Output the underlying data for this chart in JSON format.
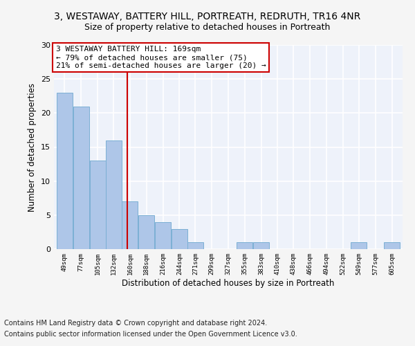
{
  "title1": "3, WESTAWAY, BATTERY HILL, PORTREATH, REDRUTH, TR16 4NR",
  "title2": "Size of property relative to detached houses in Portreath",
  "xlabel": "Distribution of detached houses by size in Portreath",
  "ylabel": "Number of detached properties",
  "bins": [
    49,
    77,
    105,
    132,
    160,
    188,
    216,
    244,
    271,
    299,
    327,
    355,
    383,
    410,
    438,
    466,
    494,
    522,
    549,
    577,
    605
  ],
  "counts": [
    23,
    21,
    13,
    16,
    7,
    5,
    4,
    3,
    1,
    0,
    0,
    1,
    1,
    0,
    0,
    0,
    0,
    0,
    1,
    0,
    1
  ],
  "bar_color": "#aec6e8",
  "bar_edge_color": "#7bafd4",
  "reference_line_x": 169,
  "reference_line_color": "#cc0000",
  "annotation_text": "3 WESTAWAY BATTERY HILL: 169sqm\n← 79% of detached houses are smaller (75)\n21% of semi-detached houses are larger (20) →",
  "annotation_box_color": "#ffffff",
  "annotation_box_edge": "#cc0000",
  "ylim": [
    0,
    30
  ],
  "yticks": [
    0,
    5,
    10,
    15,
    20,
    25,
    30
  ],
  "footer1": "Contains HM Land Registry data © Crown copyright and database right 2024.",
  "footer2": "Contains public sector information licensed under the Open Government Licence v3.0.",
  "bg_color": "#eef2fa",
  "grid_color": "#ffffff",
  "title1_fontsize": 10,
  "title2_fontsize": 9,
  "annotation_fontsize": 8,
  "footer_fontsize": 7,
  "ylabel_fontsize": 8.5,
  "xlabel_fontsize": 8.5,
  "ytick_fontsize": 8,
  "xtick_fontsize": 6.5
}
